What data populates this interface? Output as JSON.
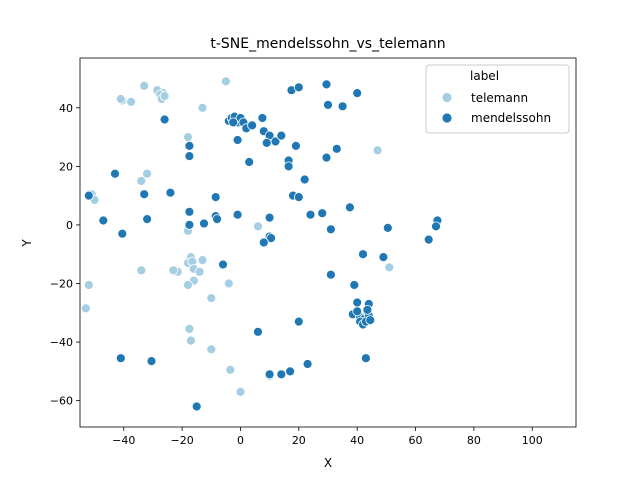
{
  "chart_data": {
    "type": "scatter",
    "title": "t-SNE_mendelssohn_vs_telemann",
    "xlabel": "X",
    "ylabel": "Y",
    "xlim": [
      -55,
      115
    ],
    "ylim": [
      -69,
      57
    ],
    "xticks": [
      -40,
      -20,
      0,
      20,
      40,
      60,
      80,
      100
    ],
    "yticks": [
      -60,
      -40,
      -20,
      0,
      20,
      40
    ],
    "grid": false,
    "legend": {
      "title": "label",
      "placement": "top-right"
    },
    "series": [
      {
        "name": "telemann",
        "color": "#a6cee3",
        "points": [
          [
            -33,
            47.5
          ],
          [
            -28.5,
            46
          ],
          [
            -26.5,
            45
          ],
          [
            -27.5,
            44.5
          ],
          [
            -27,
            43
          ],
          [
            -26,
            44
          ],
          [
            -40.5,
            42.5
          ],
          [
            -41,
            43
          ],
          [
            -37.5,
            42
          ],
          [
            -13,
            40
          ],
          [
            -5,
            49
          ],
          [
            -18,
            30
          ],
          [
            -32,
            17.5
          ],
          [
            -34,
            15
          ],
          [
            47,
            25.5
          ],
          [
            -51,
            10.5
          ],
          [
            -50,
            8.5
          ],
          [
            6,
            -0.5
          ],
          [
            -18,
            -2
          ],
          [
            -17,
            -11
          ],
          [
            -18,
            -13
          ],
          [
            -16.5,
            -12.5
          ],
          [
            -13,
            -12
          ],
          [
            -16,
            -15
          ],
          [
            -14,
            -16
          ],
          [
            -21.5,
            -16
          ],
          [
            -23,
            -15.5
          ],
          [
            -16,
            -19
          ],
          [
            -18,
            -20.5
          ],
          [
            -34,
            -15.5
          ],
          [
            51,
            -14.5
          ],
          [
            -52,
            -20.5
          ],
          [
            -10,
            -25
          ],
          [
            -4,
            -20
          ],
          [
            -53,
            -28.5
          ],
          [
            -17.5,
            -35.5
          ],
          [
            -17,
            -39.5
          ],
          [
            -10,
            -42.5
          ],
          [
            -3.5,
            -49.5
          ],
          [
            0,
            -57
          ],
          [
            10,
            -51.5
          ]
        ]
      },
      {
        "name": "mendelssohn",
        "color": "#1f78b4",
        "points": [
          [
            29.5,
            48
          ],
          [
            17.5,
            46
          ],
          [
            20,
            47
          ],
          [
            40,
            45
          ],
          [
            30,
            41
          ],
          [
            35,
            40.5
          ],
          [
            -26,
            36
          ],
          [
            -4,
            35.5
          ],
          [
            -3,
            36.5
          ],
          [
            -2,
            37
          ],
          [
            -1,
            35
          ],
          [
            0,
            36.5
          ],
          [
            -2.5,
            35
          ],
          [
            1,
            35
          ],
          [
            2,
            33
          ],
          [
            4,
            34
          ],
          [
            7.5,
            36.5
          ],
          [
            8,
            32
          ],
          [
            10,
            30.5
          ],
          [
            12,
            28.5
          ],
          [
            9,
            28
          ],
          [
            14,
            30.5
          ],
          [
            -1,
            29
          ],
          [
            -17.5,
            27
          ],
          [
            -17.5,
            23.5
          ],
          [
            3,
            21.5
          ],
          [
            16.5,
            22
          ],
          [
            16.5,
            20
          ],
          [
            19,
            27
          ],
          [
            33,
            26
          ],
          [
            29.5,
            23
          ],
          [
            22,
            15.5
          ],
          [
            -43,
            17.5
          ],
          [
            -33,
            10.5
          ],
          [
            -24,
            11
          ],
          [
            -52,
            10
          ],
          [
            -17.5,
            4.5
          ],
          [
            -8.5,
            9.5
          ],
          [
            18,
            10
          ],
          [
            20,
            9.5
          ],
          [
            -32,
            2
          ],
          [
            -47,
            1.5
          ],
          [
            -17.5,
            0
          ],
          [
            -12.5,
            0.5
          ],
          [
            -8.5,
            3
          ],
          [
            -8,
            2
          ],
          [
            -1,
            3.5
          ],
          [
            10,
            2.5
          ],
          [
            24,
            3.5
          ],
          [
            28,
            4
          ],
          [
            37.5,
            6
          ],
          [
            -40.5,
            -3
          ],
          [
            10,
            -4
          ],
          [
            10.5,
            -4.5
          ],
          [
            8,
            -6
          ],
          [
            31,
            -1.5
          ],
          [
            50.5,
            -1
          ],
          [
            -6,
            -13.5
          ],
          [
            31,
            -17
          ],
          [
            42,
            -10
          ],
          [
            49,
            -11
          ],
          [
            67.5,
            1.5
          ],
          [
            67,
            -0.5
          ],
          [
            64.5,
            -5
          ],
          [
            39,
            -20.5
          ],
          [
            20,
            -33
          ],
          [
            40,
            -26.5
          ],
          [
            44,
            -27
          ],
          [
            38.5,
            -30.5
          ],
          [
            41,
            -31.5
          ],
          [
            42.5,
            -32
          ],
          [
            43.5,
            -30
          ],
          [
            44,
            -31
          ],
          [
            41,
            -33
          ],
          [
            42,
            -34
          ],
          [
            43,
            -33
          ],
          [
            44.5,
            -32.5
          ],
          [
            43.5,
            -29
          ],
          [
            40,
            -29.5
          ],
          [
            6,
            -36.5
          ],
          [
            -41,
            -45.5
          ],
          [
            -30.5,
            -46.5
          ],
          [
            43,
            -45.5
          ],
          [
            23,
            -47.5
          ],
          [
            17,
            -50
          ],
          [
            10,
            -51
          ],
          [
            14,
            -51
          ],
          [
            -15,
            -62
          ]
        ]
      }
    ]
  }
}
